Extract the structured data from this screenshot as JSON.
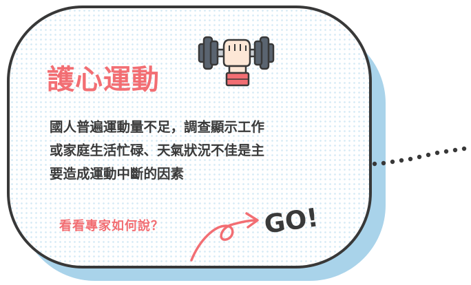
{
  "card": {
    "title": "護心運動",
    "icon": "dumbbell-icon",
    "lines": [
      "國人普遍運動量不足，調查顯示工作",
      "或家庭生活忙碌、天氣狀況不佳是主",
      "要造成運動中斷的因素"
    ]
  },
  "cta": {
    "label": "看看專家如何說？",
    "go_label": "GO!",
    "arrow_icon": "curved-arrow-icon"
  },
  "colors": {
    "accent": "#f26e73",
    "text": "#3a3a3a",
    "border": "#383838",
    "shadow": "#a9d3ea",
    "dot_pattern": "#d9ecf6"
  }
}
